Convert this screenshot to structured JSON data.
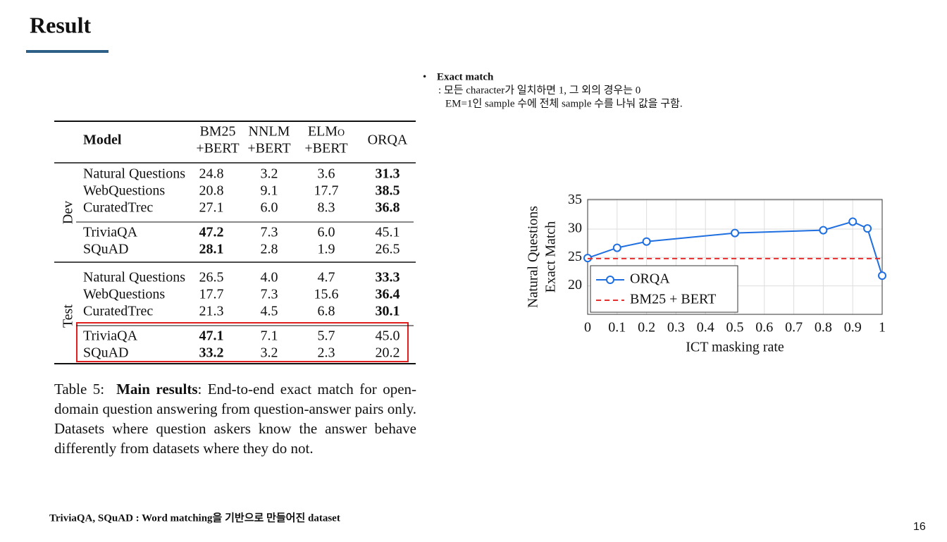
{
  "header": {
    "title": "Result"
  },
  "notes": {
    "heading": "Exact match",
    "lines": [
      ": 모든 character가 일치하면 1, 그 외의 경우는 0",
      "EM=1인 sample 수에 전체 sample 수를 나눠 값을 구함."
    ]
  },
  "table": {
    "columns": [
      [
        "Model"
      ],
      [
        "BM25",
        "+BERT"
      ],
      [
        "NNLM",
        "+BERT"
      ],
      [
        "ELMo",
        "+BERT"
      ],
      [
        "ORQA"
      ]
    ],
    "groups": [
      {
        "name": "Dev",
        "rows": [
          {
            "cells": [
              "Natural Questions",
              "24.8",
              "3.2",
              "3.6",
              "31.3"
            ],
            "bold": 4
          },
          {
            "cells": [
              "WebQuestions",
              "20.8",
              "9.1",
              "17.7",
              "38.5"
            ],
            "bold": 4
          },
          {
            "cells": [
              "CuratedTrec",
              "27.1",
              "6.0",
              "8.3",
              "36.8"
            ],
            "bold": 4
          },
          {
            "cells": [
              "TriviaQA",
              "47.2",
              "7.3",
              "6.0",
              "45.1"
            ],
            "bold": 1
          },
          {
            "cells": [
              "SQuAD",
              "28.1",
              "2.8",
              "1.9",
              "26.5"
            ],
            "bold": 1
          }
        ]
      },
      {
        "name": "Test",
        "rows": [
          {
            "cells": [
              "Natural Questions",
              "26.5",
              "4.0",
              "4.7",
              "33.3"
            ],
            "bold": 4
          },
          {
            "cells": [
              "WebQuestions",
              "17.7",
              "7.3",
              "15.6",
              "36.4"
            ],
            "bold": 4
          },
          {
            "cells": [
              "CuratedTrec",
              "21.3",
              "4.5",
              "6.8",
              "30.1"
            ],
            "bold": 4
          },
          {
            "cells": [
              "TriviaQA",
              "47.1",
              "7.1",
              "5.7",
              "45.0"
            ],
            "bold": 1
          },
          {
            "cells": [
              "SQuAD",
              "33.2",
              "3.2",
              "2.3",
              "20.2"
            ],
            "bold": 1
          }
        ]
      }
    ]
  },
  "caption": {
    "label": "Table 5:",
    "bold": "Main results",
    "text": ": End-to-end exact match for open-domain question answering from question-answer pairs only. Datasets where question askers know the answer behave differently from datasets where they do not."
  },
  "chart_data": {
    "type": "line",
    "x_label": "ICT masking rate",
    "y_label": [
      "Natural Questions",
      "Exact Match"
    ],
    "series": [
      {
        "name": "ORQA",
        "color": "#1f6fe0",
        "marker": "o",
        "linestyle": "solid",
        "x": [
          0,
          0.1,
          0.2,
          0.5,
          0.8,
          0.9,
          0.95,
          1
        ],
        "values": [
          24.9,
          26.7,
          27.8,
          29.3,
          29.8,
          31.3,
          30.1,
          21.8
        ]
      },
      {
        "name": "BM25 + BERT",
        "color": "#e03030",
        "linestyle": "dashed",
        "x": [
          0,
          1
        ],
        "values": [
          24.8,
          24.8
        ]
      }
    ],
    "xlim": [
      0,
      1
    ],
    "xticks": [
      0,
      0.1,
      0.2,
      0.3,
      0.4,
      0.5,
      0.6,
      0.7,
      0.8,
      0.9,
      1
    ],
    "ylim": [
      15,
      35.2
    ],
    "yticks": [
      20,
      25,
      30,
      35
    ],
    "grid": true,
    "legend": "lower left"
  },
  "footer": {
    "note": "TriviaQA, SQuAD : Word matching을 기반으로 만들어진 dataset",
    "page": "16"
  }
}
